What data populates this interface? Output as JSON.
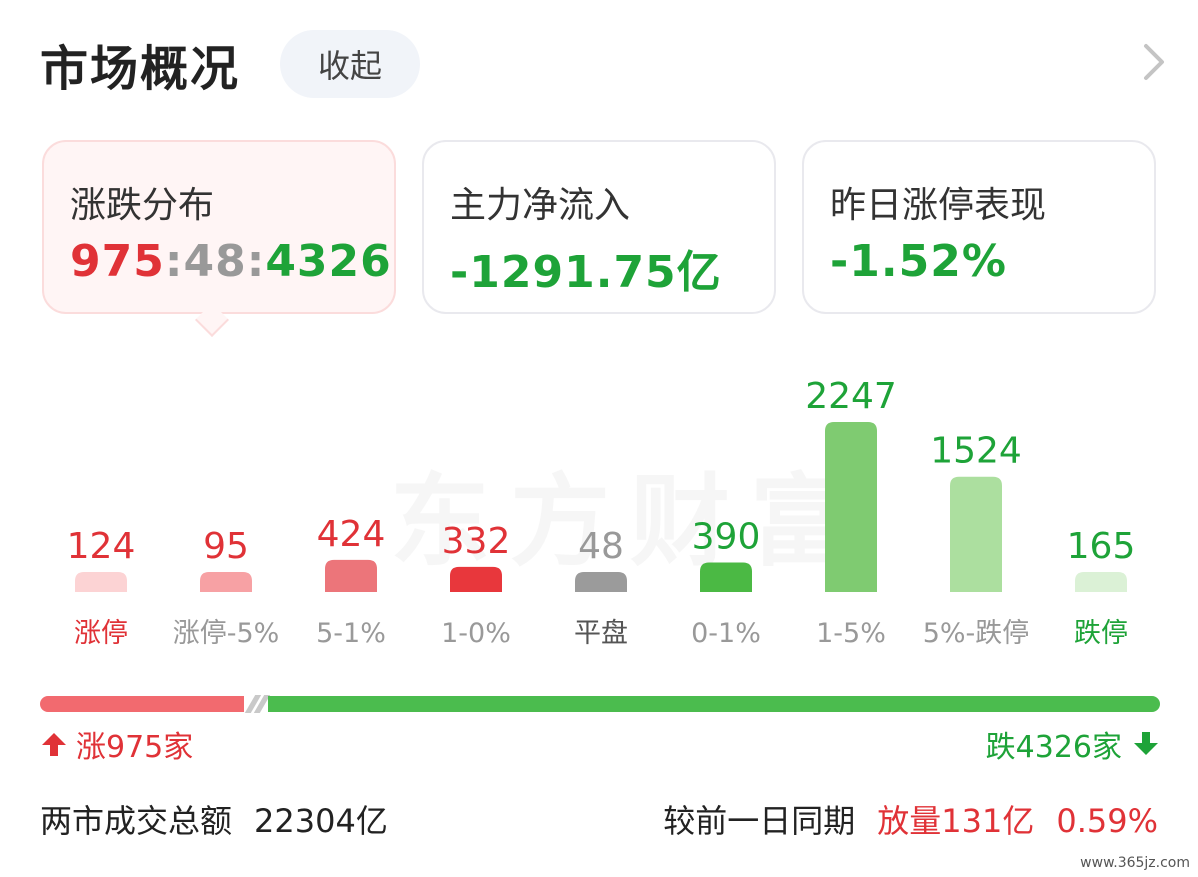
{
  "header": {
    "title": "市场概况",
    "collapse_label": "收起"
  },
  "cards": [
    {
      "label": "涨跌分布",
      "up": "975",
      "flat": "48",
      "down": "4326",
      "sep": ":"
    },
    {
      "label": "主力净流入",
      "value": "-1291.75亿"
    },
    {
      "label": "昨日涨停表现",
      "value": "-1.52%"
    }
  ],
  "watermark": "东方财富",
  "chart_data": {
    "type": "bar",
    "categories": [
      "涨停",
      "涨停-5%",
      "5-1%",
      "1-0%",
      "平盘",
      "0-1%",
      "1-5%",
      "5%-跌停",
      "跌停"
    ],
    "values": [
      124,
      95,
      424,
      332,
      48,
      390,
      2247,
      1524,
      165
    ],
    "value_labels": [
      "124",
      "95",
      "424",
      "332",
      "48",
      "390",
      "2247",
      "1524",
      "165"
    ],
    "colors": [
      "#fcd3d4",
      "#f7a1a4",
      "#ec757a",
      "#e8373c",
      "#9b9b9b",
      "#4bb944",
      "#7fcb71",
      "#acdf9f",
      "#dbf1d6"
    ],
    "text_colors": [
      "#e03237",
      "#e03237",
      "#e03237",
      "#e03237",
      "#999999",
      "#1ea338",
      "#1ea338",
      "#1ea338",
      "#1ea338"
    ],
    "label_colors": [
      "#e03237",
      "#999999",
      "#999999",
      "#999999",
      "#555555",
      "#999999",
      "#999999",
      "#999999",
      "#1ea338"
    ],
    "ylim": [
      0,
      2247
    ]
  },
  "breadth": {
    "up_count": 975,
    "flat_count": 48,
    "down_count": 4326,
    "up_label": "涨975家",
    "down_label": "跌4326家",
    "up_color": "#f26a6f",
    "down_color": "#4bbc4e"
  },
  "turnover": {
    "label": "两市成交总额",
    "value": "22304亿",
    "compare_label": "较前一日同期",
    "change": "放量131亿",
    "change_pct": "0.59%"
  },
  "footer": {
    "site": "www.365jz.com"
  },
  "icons": {
    "chevron": "chevron-right-icon",
    "up_arrow": "arrow-up-icon",
    "down_arrow": "arrow-down-icon"
  }
}
